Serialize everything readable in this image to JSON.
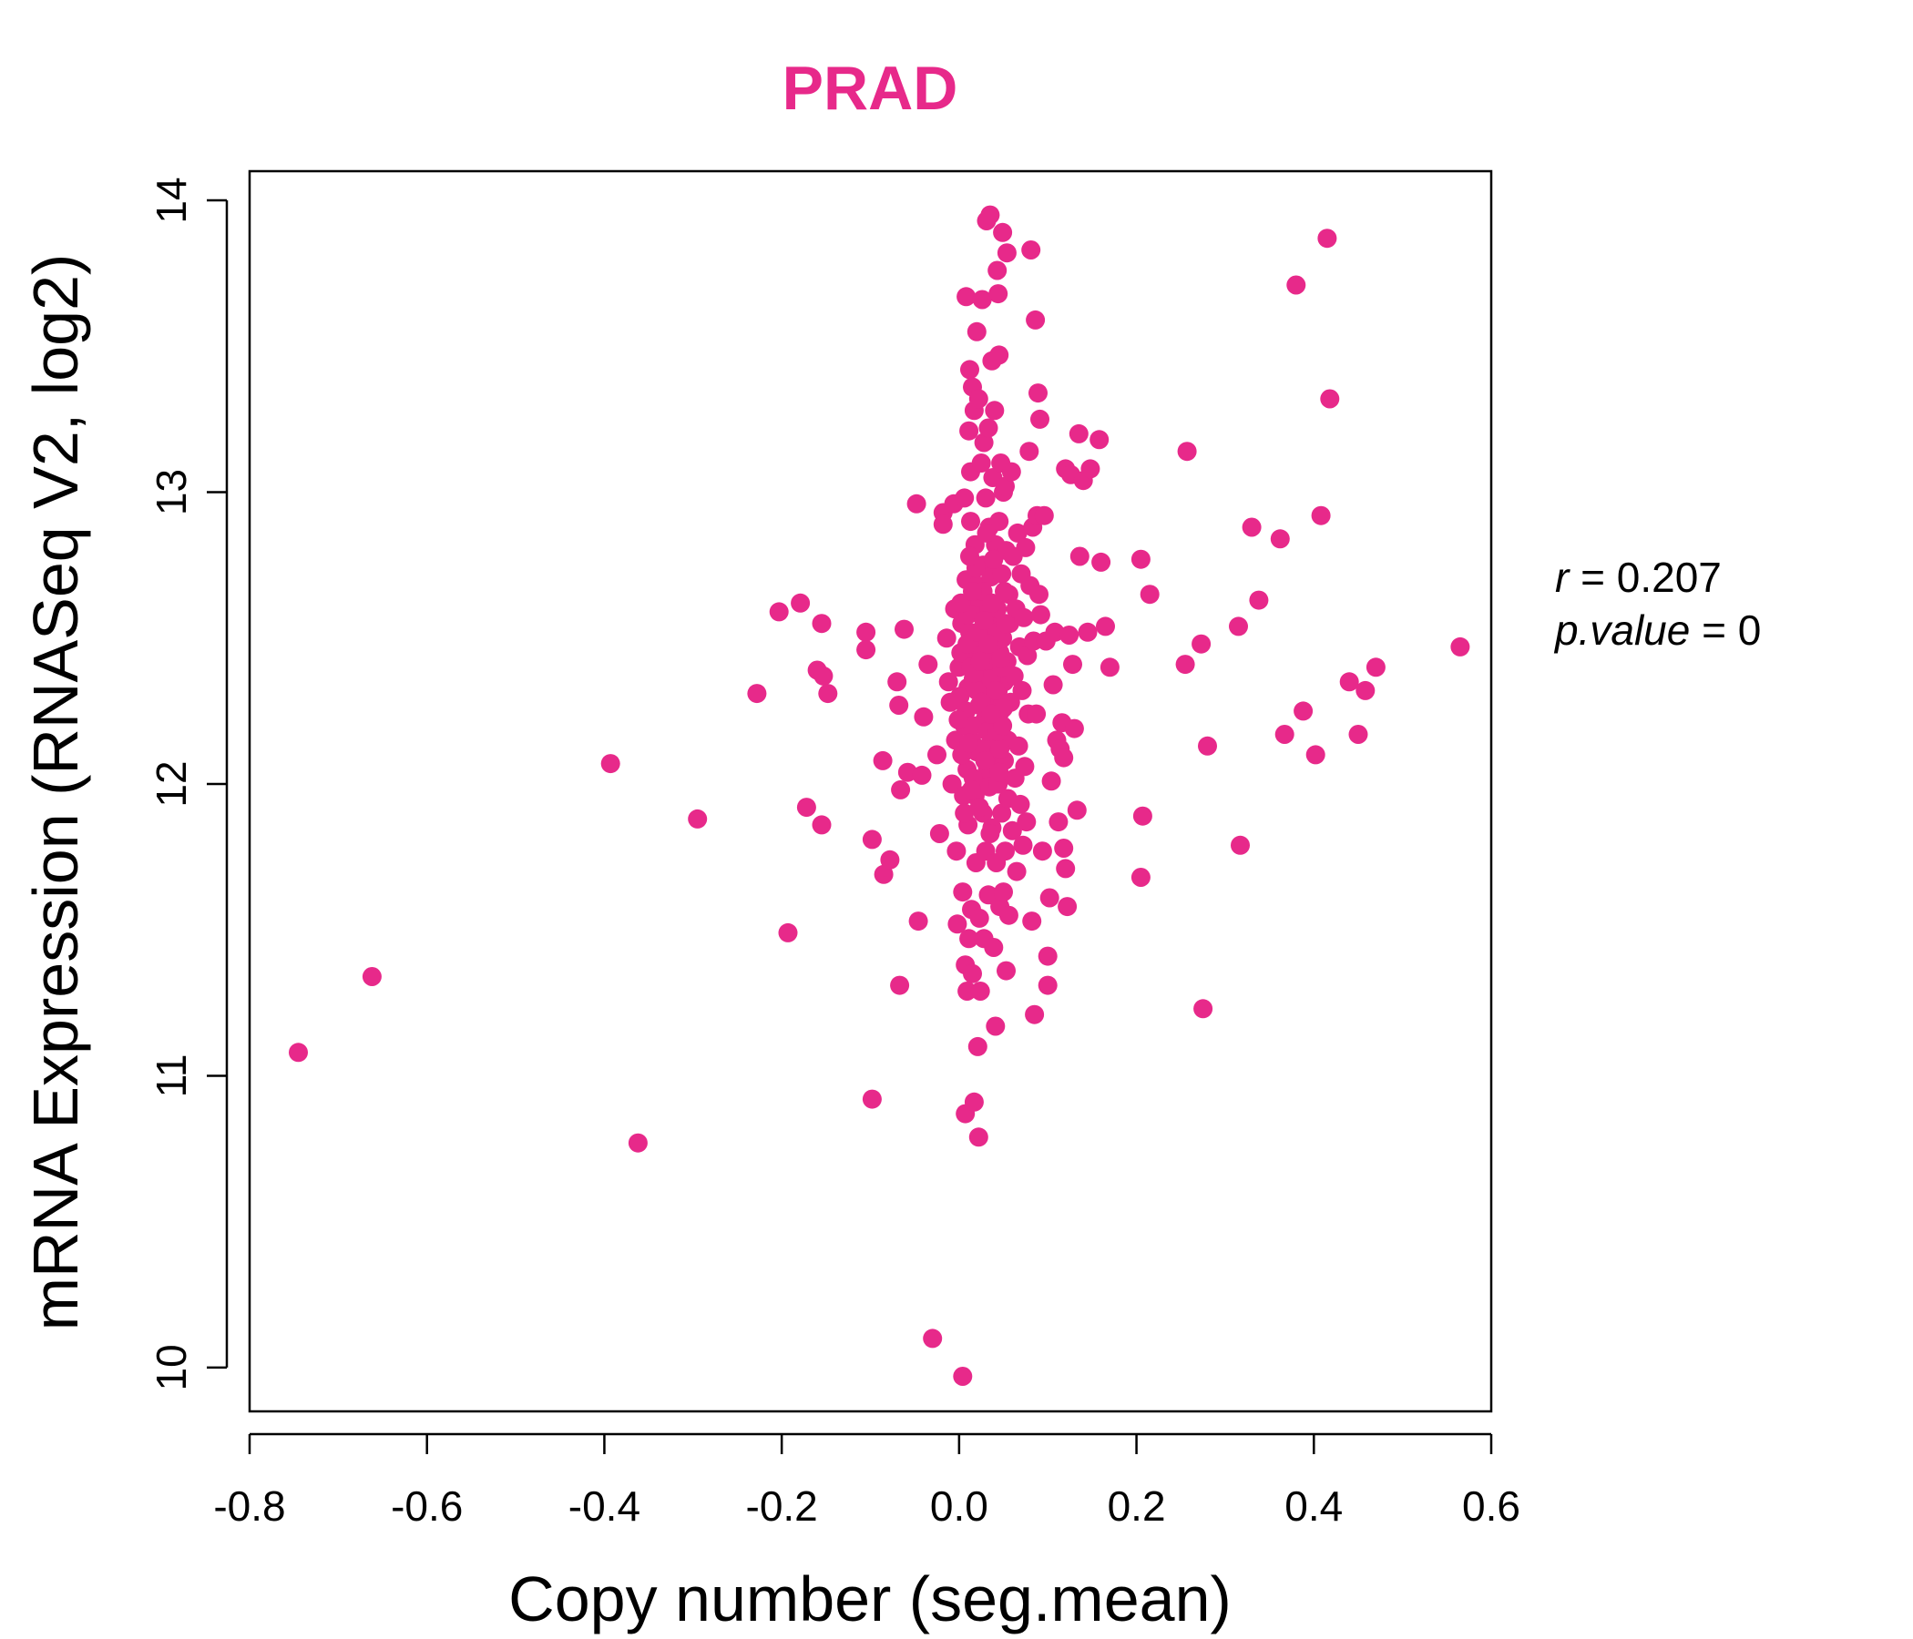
{
  "chart_data": {
    "type": "scatter",
    "title": "PRAD",
    "xlabel": "Copy number (seg.mean)",
    "ylabel": "mRNA Expression (RNASeq V2, log2)",
    "xlim": [
      -0.8,
      0.6
    ],
    "ylim": [
      9.85,
      14.1
    ],
    "x_ticks": [
      "-0.8",
      "-0.6",
      "-0.4",
      "-0.2",
      "0.0",
      "0.2",
      "0.4",
      "0.6"
    ],
    "x_tick_values": [
      -0.8,
      -0.6,
      -0.4,
      -0.2,
      0.0,
      0.2,
      0.4,
      0.6
    ],
    "y_ticks": [
      "10",
      "11",
      "12",
      "13",
      "14"
    ],
    "y_tick_values": [
      10,
      11,
      12,
      13,
      14
    ],
    "grid": false,
    "point_color": "#E7298A",
    "stats": {
      "r_label": "r",
      "r_value": "0.207",
      "p_label": "p.value",
      "p_value": "0"
    },
    "points": [
      [
        -0.745,
        11.08
      ],
      [
        -0.662,
        11.34
      ],
      [
        -0.393,
        12.07
      ],
      [
        -0.362,
        10.77
      ],
      [
        -0.295,
        11.88
      ],
      [
        -0.228,
        12.31
      ],
      [
        -0.203,
        12.59
      ],
      [
        -0.179,
        12.62
      ],
      [
        -0.172,
        11.92
      ],
      [
        -0.193,
        11.49
      ],
      [
        -0.16,
        12.39
      ],
      [
        -0.153,
        12.37
      ],
      [
        -0.155,
        12.55
      ],
      [
        -0.148,
        12.31
      ],
      [
        -0.155,
        11.86
      ],
      [
        -0.105,
        12.52
      ],
      [
        -0.105,
        12.46
      ],
      [
        -0.098,
        11.81
      ],
      [
        -0.098,
        10.92
      ],
      [
        -0.086,
        12.08
      ],
      [
        -0.085,
        11.69
      ],
      [
        -0.078,
        11.74
      ],
      [
        -0.07,
        12.35
      ],
      [
        -0.068,
        12.27
      ],
      [
        -0.067,
        11.31
      ],
      [
        -0.066,
        11.98
      ],
      [
        -0.062,
        12.53
      ],
      [
        -0.058,
        12.04
      ],
      [
        -0.048,
        12.96
      ],
      [
        -0.046,
        11.53
      ],
      [
        -0.042,
        12.03
      ],
      [
        -0.04,
        12.23
      ],
      [
        -0.035,
        12.41
      ],
      [
        -0.03,
        10.1
      ],
      [
        -0.025,
        12.1
      ],
      [
        -0.022,
        11.83
      ],
      [
        -0.018,
        12.93
      ],
      [
        -0.018,
        12.89
      ],
      [
        -0.014,
        12.5
      ],
      [
        -0.012,
        12.35
      ],
      [
        -0.01,
        12.28
      ],
      [
        -0.008,
        12.0
      ],
      [
        -0.006,
        12.96
      ],
      [
        -0.005,
        12.6
      ],
      [
        -0.004,
        12.15
      ],
      [
        -0.003,
        11.77
      ],
      [
        -0.002,
        11.52
      ],
      [
        0.0,
        12.4
      ],
      [
        0.002,
        12.45
      ],
      [
        0.003,
        12.55
      ],
      [
        0.004,
        11.63
      ],
      [
        0.004,
        9.97
      ],
      [
        0.005,
        11.96
      ],
      [
        0.006,
        12.2
      ],
      [
        0.006,
        12.98
      ],
      [
        0.007,
        11.38
      ],
      [
        0.007,
        10.87
      ],
      [
        0.008,
        13.67
      ],
      [
        0.008,
        12.7
      ],
      [
        0.009,
        12.05
      ],
      [
        0.009,
        11.29
      ],
      [
        0.01,
        12.33
      ],
      [
        0.01,
        11.86
      ],
      [
        0.011,
        13.21
      ],
      [
        0.011,
        11.47
      ],
      [
        0.012,
        12.52
      ],
      [
        0.012,
        13.42
      ],
      [
        0.013,
        13.07
      ],
      [
        0.013,
        12.9
      ],
      [
        0.014,
        12.15
      ],
      [
        0.014,
        11.57
      ],
      [
        0.015,
        13.36
      ],
      [
        0.015,
        11.35
      ],
      [
        0.016,
        12.62
      ],
      [
        0.016,
        12.36
      ],
      [
        0.017,
        10.91
      ],
      [
        0.017,
        13.28
      ],
      [
        0.018,
        12.82
      ],
      [
        0.018,
        11.96
      ],
      [
        0.019,
        11.73
      ],
      [
        0.019,
        12.45
      ],
      [
        0.02,
        13.55
      ],
      [
        0.02,
        12.11
      ],
      [
        0.021,
        11.1
      ],
      [
        0.021,
        12.68
      ],
      [
        0.022,
        10.79
      ],
      [
        0.022,
        13.32
      ],
      [
        0.023,
        12.27
      ],
      [
        0.023,
        11.54
      ],
      [
        0.024,
        11.29
      ],
      [
        0.024,
        12.58
      ],
      [
        0.025,
        13.1
      ],
      [
        0.025,
        12.01
      ],
      [
        0.026,
        13.66
      ],
      [
        0.026,
        12.4
      ],
      [
        0.027,
        11.9
      ],
      [
        0.027,
        12.75
      ],
      [
        0.028,
        11.47
      ],
      [
        0.028,
        13.17
      ],
      [
        0.029,
        12.52
      ],
      [
        0.029,
        12.22
      ],
      [
        0.03,
        12.98
      ],
      [
        0.03,
        11.77
      ],
      [
        0.031,
        13.93
      ],
      [
        0.031,
        12.33
      ],
      [
        0.032,
        12.05
      ],
      [
        0.032,
        12.62
      ],
      [
        0.033,
        13.22
      ],
      [
        0.033,
        11.62
      ],
      [
        0.034,
        12.88
      ],
      [
        0.034,
        11.99
      ],
      [
        0.035,
        13.95
      ],
      [
        0.035,
        12.46
      ],
      [
        0.036,
        12.16
      ],
      [
        0.036,
        12.71
      ],
      [
        0.037,
        13.45
      ],
      [
        0.037,
        11.85
      ],
      [
        0.038,
        13.05
      ],
      [
        0.038,
        12.3
      ],
      [
        0.039,
        11.44
      ],
      [
        0.039,
        12.55
      ],
      [
        0.04,
        13.28
      ],
      [
        0.04,
        12.1
      ],
      [
        0.041,
        11.17
      ],
      [
        0.041,
        12.82
      ],
      [
        0.042,
        12.38
      ],
      [
        0.042,
        11.73
      ],
      [
        0.043,
        13.76
      ],
      [
        0.043,
        12.6
      ],
      [
        0.044,
        13.68
      ],
      [
        0.044,
        12.0
      ],
      [
        0.045,
        13.47
      ],
      [
        0.045,
        12.9
      ],
      [
        0.046,
        12.45
      ],
      [
        0.046,
        11.58
      ],
      [
        0.047,
        13.1
      ],
      [
        0.047,
        12.25
      ],
      [
        0.048,
        12.72
      ],
      [
        0.048,
        11.9
      ],
      [
        0.049,
        13.89
      ],
      [
        0.049,
        12.5
      ],
      [
        0.05,
        13.0
      ],
      [
        0.05,
        11.63
      ],
      [
        0.051,
        12.35
      ],
      [
        0.051,
        12.08
      ],
      [
        0.052,
        13.02
      ],
      [
        0.052,
        11.77
      ],
      [
        0.053,
        12.8
      ],
      [
        0.053,
        11.36
      ],
      [
        0.054,
        13.82
      ],
      [
        0.054,
        12.42
      ],
      [
        0.055,
        12.15
      ],
      [
        0.055,
        11.95
      ],
      [
        0.056,
        12.65
      ],
      [
        0.056,
        11.55
      ],
      [
        0.057,
        12.55
      ],
      [
        0.058,
        12.28
      ],
      [
        0.059,
        13.07
      ],
      [
        0.06,
        11.84
      ],
      [
        0.061,
        12.78
      ],
      [
        0.062,
        12.37
      ],
      [
        0.063,
        12.02
      ],
      [
        0.064,
        12.6
      ],
      [
        0.065,
        11.7
      ],
      [
        0.066,
        12.86
      ],
      [
        0.067,
        12.13
      ],
      [
        0.068,
        12.47
      ],
      [
        0.069,
        11.93
      ],
      [
        0.07,
        12.72
      ],
      [
        0.071,
        12.32
      ],
      [
        0.072,
        11.79
      ],
      [
        0.073,
        12.57
      ],
      [
        0.074,
        12.06
      ],
      [
        0.075,
        12.81
      ],
      [
        0.076,
        11.87
      ],
      [
        0.077,
        12.44
      ],
      [
        0.078,
        12.24
      ],
      [
        0.079,
        13.14
      ],
      [
        0.08,
        12.68
      ],
      [
        0.081,
        13.83
      ],
      [
        0.082,
        11.53
      ],
      [
        0.083,
        12.88
      ],
      [
        0.084,
        12.49
      ],
      [
        0.085,
        11.21
      ],
      [
        0.086,
        13.59
      ],
      [
        0.087,
        12.24
      ],
      [
        0.088,
        12.92
      ],
      [
        0.089,
        13.34
      ],
      [
        0.09,
        12.65
      ],
      [
        0.091,
        13.25
      ],
      [
        0.092,
        12.58
      ],
      [
        0.094,
        11.77
      ],
      [
        0.096,
        12.92
      ],
      [
        0.098,
        12.49
      ],
      [
        0.1,
        11.41
      ],
      [
        0.1,
        11.31
      ],
      [
        0.102,
        11.61
      ],
      [
        0.104,
        12.01
      ],
      [
        0.106,
        12.34
      ],
      [
        0.108,
        12.52
      ],
      [
        0.11,
        12.15
      ],
      [
        0.112,
        11.87
      ],
      [
        0.114,
        12.12
      ],
      [
        0.116,
        12.21
      ],
      [
        0.118,
        11.78
      ],
      [
        0.118,
        12.09
      ],
      [
        0.12,
        11.71
      ],
      [
        0.12,
        13.08
      ],
      [
        0.122,
        11.58
      ],
      [
        0.124,
        12.51
      ],
      [
        0.126,
        13.06
      ],
      [
        0.128,
        12.41
      ],
      [
        0.13,
        12.19
      ],
      [
        0.133,
        11.91
      ],
      [
        0.135,
        13.2
      ],
      [
        0.136,
        12.78
      ],
      [
        0.14,
        13.04
      ],
      [
        0.145,
        12.52
      ],
      [
        0.148,
        13.08
      ],
      [
        0.158,
        13.18
      ],
      [
        0.16,
        12.76
      ],
      [
        0.165,
        12.54
      ],
      [
        0.17,
        12.4
      ],
      [
        0.205,
        12.77
      ],
      [
        0.205,
        11.68
      ],
      [
        0.207,
        11.89
      ],
      [
        0.215,
        12.65
      ],
      [
        0.255,
        12.41
      ],
      [
        0.257,
        13.14
      ],
      [
        0.273,
        12.48
      ],
      [
        0.275,
        11.23
      ],
      [
        0.28,
        12.13
      ],
      [
        0.315,
        12.54
      ],
      [
        0.317,
        11.79
      ],
      [
        0.33,
        12.88
      ],
      [
        0.338,
        12.63
      ],
      [
        0.362,
        12.84
      ],
      [
        0.367,
        12.17
      ],
      [
        0.38,
        13.71
      ],
      [
        0.388,
        12.25
      ],
      [
        0.402,
        12.1
      ],
      [
        0.408,
        12.92
      ],
      [
        0.415,
        13.87
      ],
      [
        0.418,
        13.32
      ],
      [
        0.44,
        12.35
      ],
      [
        0.45,
        12.17
      ],
      [
        0.458,
        12.32
      ],
      [
        0.47,
        12.4
      ],
      [
        0.565,
        12.47
      ],
      [
        0.001,
        12.3
      ],
      [
        0.003,
        12.1
      ],
      [
        0.005,
        12.45
      ],
      [
        0.008,
        12.25
      ],
      [
        0.01,
        12.58
      ],
      [
        0.013,
        12.4
      ],
      [
        0.015,
        12.2
      ],
      [
        0.018,
        12.48
      ],
      [
        0.02,
        12.32
      ],
      [
        0.022,
        12.64
      ],
      [
        0.024,
        12.12
      ],
      [
        0.026,
        12.5
      ],
      [
        0.028,
        12.28
      ],
      [
        0.03,
        12.42
      ],
      [
        0.032,
        12.18
      ],
      [
        0.034,
        12.6
      ],
      [
        0.036,
        12.36
      ],
      [
        0.038,
        12.48
      ],
      [
        0.04,
        12.22
      ],
      [
        0.042,
        12.52
      ],
      [
        0.044,
        12.32
      ],
      [
        0.046,
        12.12
      ],
      [
        0.048,
        12.4
      ],
      [
        0.05,
        12.26
      ],
      [
        0.052,
        12.55
      ],
      [
        0.016,
        12.02
      ],
      [
        0.019,
        12.74
      ],
      [
        0.023,
        11.92
      ],
      [
        0.027,
        12.66
      ],
      [
        0.031,
        12.86
      ],
      [
        0.035,
        11.83
      ],
      [
        0.039,
        12.77
      ],
      [
        0.043,
        12.18
      ],
      [
        0.047,
        12.43
      ],
      [
        0.051,
        12.66
      ],
      [
        -0.001,
        12.22
      ],
      [
        0.002,
        12.62
      ],
      [
        0.006,
        11.9
      ],
      [
        0.009,
        12.48
      ],
      [
        0.012,
        12.78
      ],
      [
        0.014,
        11.98
      ],
      [
        0.017,
        12.38
      ],
      [
        0.021,
        12.52
      ],
      [
        0.025,
        12.28
      ],
      [
        0.029,
        12.08
      ],
      [
        0.033,
        12.48
      ],
      [
        0.037,
        12.62
      ],
      [
        0.041,
        12.32
      ],
      [
        0.045,
        12.04
      ],
      [
        0.049,
        12.2
      ],
      [
        0.011,
        12.14
      ],
      [
        0.015,
        12.66
      ],
      [
        0.024,
        12.42
      ],
      [
        0.028,
        12.56
      ],
      [
        0.036,
        12.24
      ]
    ]
  }
}
